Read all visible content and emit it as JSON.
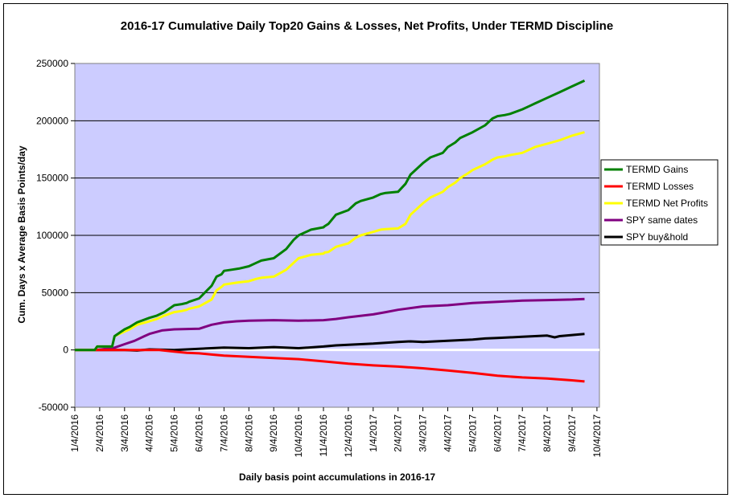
{
  "chart_data": {
    "type": "line",
    "title": "2016-17 Cumulative Daily Top20 Gains & Losses, Net Profits, Under TERMD Discipline",
    "xlabel": "Daily basis point accumulations in 2016-17",
    "ylabel": "Cum. Days x Average Basis Points/day",
    "ylim": [
      -50000,
      250000
    ],
    "yticks": [
      -50000,
      0,
      50000,
      100000,
      150000,
      200000,
      250000
    ],
    "ytick_labels": [
      "-50000",
      "0",
      "50000",
      "100000",
      "150000",
      "200000",
      "250000"
    ],
    "xlim": [
      0,
      21.1
    ],
    "xtick_labels": [
      "1/4/2016",
      "2/4/2016",
      "3/4/2016",
      "4/4/2016",
      "5/4/2016",
      "6/4/2016",
      "7/4/2016",
      "8/4/2016",
      "9/4/2016",
      "10/4/2016",
      "11/4/2016",
      "12/4/2016",
      "1/4/2017",
      "2/4/2017",
      "3/4/2017",
      "4/4/2017",
      "5/4/2017",
      "6/4/2017",
      "7/4/2017",
      "8/4/2017",
      "9/4/2017",
      "10/4/2017"
    ],
    "plot_background": "#ccccff",
    "legend_position": "right",
    "series": [
      {
        "name": "TERMD Gains",
        "color": "#008000",
        "x": [
          0,
          0.8,
          0.9,
          1.5,
          1.6,
          2.0,
          2.2,
          2.5,
          3.0,
          3.3,
          3.6,
          4.0,
          4.3,
          4.5,
          4.6,
          5.0,
          5.5,
          5.7,
          5.9,
          6.0,
          6.3,
          6.6,
          7.0,
          7.3,
          7.5,
          8.0,
          8.5,
          8.8,
          9.0,
          9.5,
          10.0,
          10.05,
          10.2,
          10.5,
          11.0,
          11.3,
          11.5,
          12.0,
          12.3,
          12.5,
          13.0,
          13.3,
          13.5,
          14.0,
          14.3,
          14.8,
          15.0,
          15.3,
          15.5,
          15.8,
          16.0,
          16.5,
          16.8,
          17.0,
          17.3,
          17.5,
          18.0,
          18.3,
          18.5,
          19.0,
          19.5,
          20.0,
          20.5
        ],
        "y": [
          0,
          0,
          3000,
          3000,
          12000,
          18000,
          20000,
          24000,
          28000,
          30000,
          33000,
          39000,
          40000,
          41000,
          42000,
          45000,
          56000,
          64000,
          66000,
          69000,
          70000,
          71000,
          73000,
          76000,
          78000,
          80000,
          88000,
          96000,
          100000,
          105000,
          107000,
          108000,
          110000,
          118000,
          122000,
          128000,
          130000,
          133000,
          136000,
          137000,
          138000,
          145000,
          153000,
          163000,
          168000,
          172000,
          177000,
          181000,
          185000,
          188000,
          190000,
          196000,
          202000,
          204000,
          205000,
          206000,
          210000,
          213000,
          215000,
          220000,
          225000,
          230000,
          235000
        ]
      },
      {
        "name": "TERMD Losses",
        "color": "#ff0000",
        "x": [
          0,
          3.4,
          4.0,
          4.5,
          5.0,
          5.5,
          6.0,
          6.5,
          7.0,
          8.0,
          9.0,
          10.0,
          11.0,
          12.0,
          13.0,
          14.0,
          15.0,
          16.0,
          17.0,
          18.0,
          19.0,
          20.0,
          20.5
        ],
        "y": [
          0,
          0,
          -1500,
          -2500,
          -3000,
          -4000,
          -5000,
          -5500,
          -6000,
          -7000,
          -8000,
          -10000,
          -12000,
          -13500,
          -14500,
          -16000,
          -18000,
          -20000,
          -22500,
          -24000,
          -25000,
          -26500,
          -27500
        ]
      },
      {
        "name": "TERMD Net Profits",
        "color": "#ffff00",
        "x": [
          0,
          0.8,
          0.9,
          1.5,
          1.6,
          2.0,
          2.2,
          2.5,
          3.0,
          3.3,
          3.6,
          4.0,
          4.3,
          4.5,
          4.6,
          5.0,
          5.5,
          5.7,
          5.9,
          6.0,
          6.3,
          6.6,
          7.0,
          7.3,
          7.5,
          8.0,
          8.5,
          8.8,
          9.0,
          9.5,
          10.0,
          10.05,
          10.2,
          10.5,
          11.0,
          11.3,
          11.5,
          12.0,
          12.3,
          12.5,
          13.0,
          13.3,
          13.5,
          14.0,
          14.3,
          14.8,
          15.0,
          15.3,
          15.5,
          15.8,
          16.0,
          16.5,
          16.8,
          17.0,
          17.3,
          17.5,
          18.0,
          18.3,
          18.5,
          19.0,
          19.5,
          20.0,
          20.5
        ],
        "y": [
          0,
          0,
          3000,
          3000,
          12000,
          16000,
          18000,
          22000,
          25000,
          27000,
          30000,
          33000,
          34000,
          35000,
          36000,
          38000,
          44000,
          52000,
          55000,
          57000,
          58000,
          59000,
          60000,
          62000,
          63000,
          64000,
          70000,
          76000,
          80000,
          83000,
          84000,
          85000,
          85500,
          90000,
          93000,
          98000,
          100000,
          103000,
          105000,
          105500,
          106000,
          110000,
          118000,
          128000,
          133000,
          138000,
          142000,
          146000,
          150000,
          154000,
          157000,
          162000,
          166000,
          168000,
          169000,
          170000,
          172000,
          175000,
          177000,
          180000,
          183000,
          187000,
          190000
        ]
      },
      {
        "name": "SPY same dates",
        "color": "#800080",
        "x": [
          0,
          0.8,
          1.3,
          1.6,
          2.0,
          2.4,
          2.8,
          3.0,
          3.5,
          4.0,
          5.0,
          5.5,
          6.0,
          6.5,
          7.0,
          8.0,
          9.0,
          10.0,
          10.5,
          11.0,
          12.0,
          12.5,
          13.0,
          14.0,
          15.0,
          16.0,
          17.0,
          18.0,
          19.0,
          20.0,
          20.5
        ],
        "y": [
          0,
          0,
          1000,
          2000,
          5000,
          8000,
          12000,
          14000,
          17000,
          18000,
          18500,
          22000,
          24000,
          25000,
          25500,
          26000,
          25500,
          26000,
          27000,
          28500,
          31000,
          33000,
          35000,
          38000,
          39000,
          41000,
          42000,
          43000,
          43500,
          44000,
          44500
        ]
      },
      {
        "name": "SPY buy&hold",
        "color": "#000000",
        "x": [
          0,
          2.0,
          2.5,
          3.0,
          4.0,
          5.0,
          6.0,
          7.0,
          8.0,
          9.0,
          10.0,
          10.5,
          11.0,
          12.0,
          13.0,
          13.5,
          14.0,
          15.0,
          15.5,
          16.0,
          16.5,
          17.0,
          17.5,
          18.0,
          18.5,
          19.0,
          19.3,
          19.5,
          20.0,
          20.5
        ],
        "y": [
          0,
          0,
          -500,
          500,
          0,
          1000,
          2000,
          1500,
          2500,
          1500,
          3000,
          4000,
          4500,
          5500,
          7000,
          7500,
          7000,
          8000,
          8500,
          9000,
          10000,
          10500,
          11000,
          11500,
          12000,
          12500,
          11000,
          12000,
          13000,
          14000
        ]
      }
    ]
  }
}
